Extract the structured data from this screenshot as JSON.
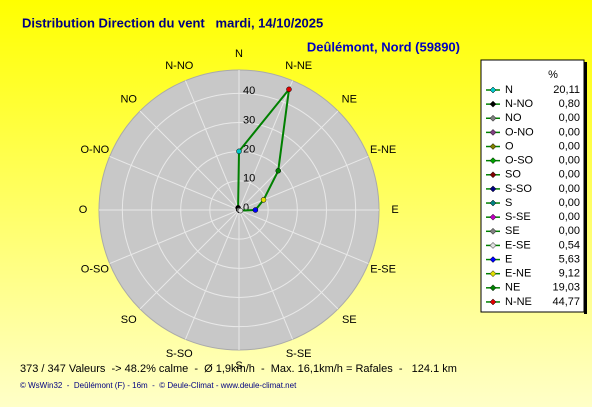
{
  "chart_data": {
    "type": "radar",
    "title": "Distribution Direction du vent   mardi, 14/10/2025",
    "subtitle": "Deûlémont, Nord (59890)",
    "unit": "%",
    "categories": [
      "N",
      "N-NO",
      "NO",
      "O-NO",
      "O",
      "O-SO",
      "SO",
      "S-SO",
      "S",
      "S-SE",
      "SE",
      "E-SE",
      "E",
      "E-NE",
      "NE",
      "N-NE"
    ],
    "values": [
      20.11,
      0.8,
      0.0,
      0.0,
      0.0,
      0.0,
      0.0,
      0.0,
      0.0,
      0.0,
      0.0,
      0.54,
      5.63,
      9.12,
      19.03,
      44.77
    ],
    "value_labels": [
      "20,11",
      "0,80",
      "0,00",
      "0,00",
      "0,00",
      "0,00",
      "0,00",
      "0,00",
      "0,00",
      "0,00",
      "0,00",
      "0,54",
      "5,63",
      "9,12",
      "19,03",
      "44,77"
    ],
    "colors": [
      "#00c8c8",
      "#000000",
      "#808080",
      "#804080",
      "#808000",
      "#00a000",
      "#800000",
      "#000080",
      "#008080",
      "#c000c0",
      "#808080",
      "#e0e0e0",
      "#0000ff",
      "#e0e000",
      "#008000",
      "#e00000"
    ],
    "line_color": "#008000",
    "ylim": [
      0,
      48
    ],
    "yticks": [
      0,
      10,
      20,
      30,
      40
    ],
    "footer": "373 / 347 Valeurs  -> 48.2% calme  -  Ø 1,9km/h  -  Max. 16,1km/h = Rafales  -   124.1 km",
    "credits": "© WsWin32  -  Deûlémont (F) - 16m  -  © Deule-Climat - www.deule-climat.net"
  }
}
